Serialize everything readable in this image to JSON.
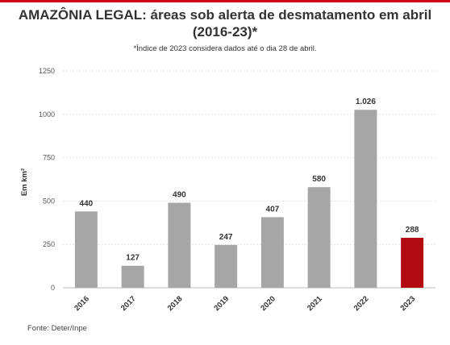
{
  "chart_data": {
    "type": "bar",
    "title": "AMAZÔNIA LEGAL: áreas sob alerta de desmatamento em abril (2016-23)*",
    "subtitle": "*Índice de 2023 considera dados até o dia 28 de abril.",
    "source": "Fonte: Deter/Inpe",
    "ylabel": "Em km²",
    "xlabel": "",
    "ylim": [
      0,
      1250
    ],
    "yticks": [
      0,
      250,
      500,
      750,
      1000,
      1250
    ],
    "ytick_labels": [
      "0",
      "250",
      "500",
      "750",
      "1000",
      "1250"
    ],
    "grid": true,
    "categories": [
      "2016",
      "2017",
      "2018",
      "2019",
      "2020",
      "2021",
      "2022",
      "2023"
    ],
    "values": [
      440,
      127,
      490,
      247,
      407,
      580,
      1026,
      288
    ],
    "data_labels": [
      "440",
      "127",
      "490",
      "247",
      "407",
      "580",
      "1.026",
      "288"
    ],
    "colors": {
      "default": "#a6a6a6",
      "highlight": "#b20c12",
      "highlight_category": "2023",
      "accent": "#d0021b"
    }
  }
}
